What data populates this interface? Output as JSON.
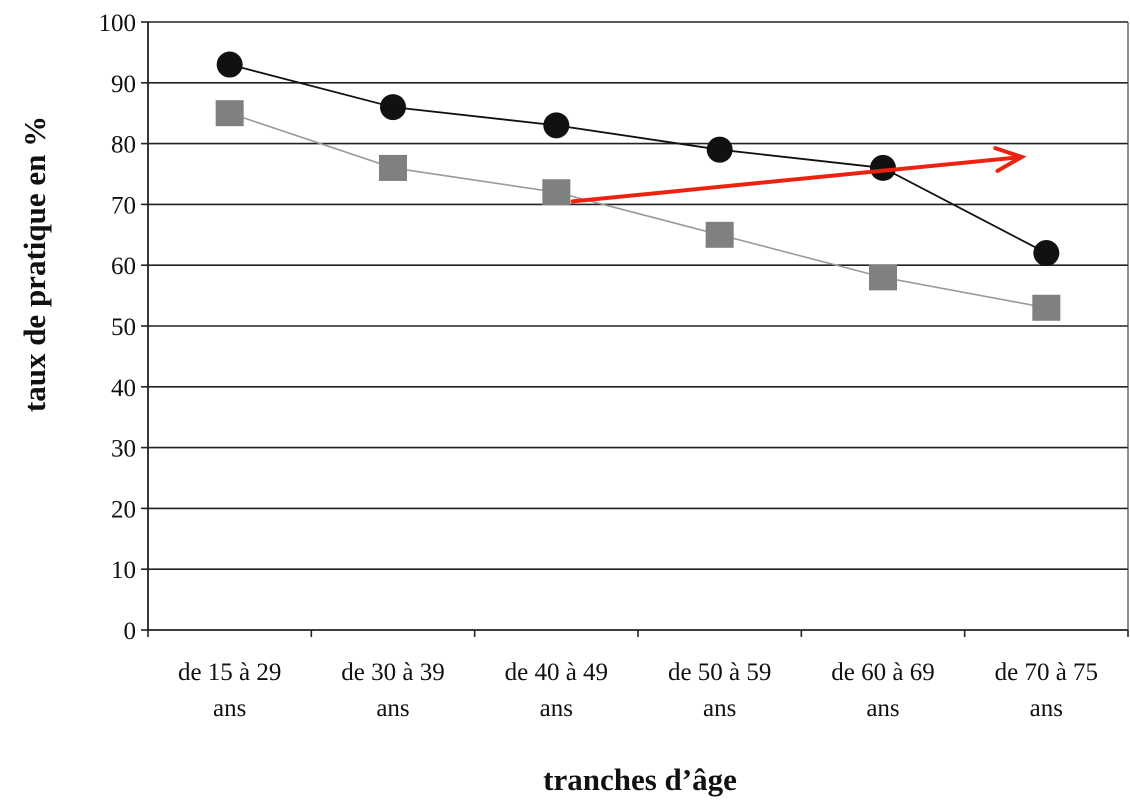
{
  "chart_data": {
    "type": "line",
    "title": "",
    "xlabel": "tranches d’âge",
    "ylabel": "taux de pratique en %",
    "categories": [
      [
        "de 15 à 29",
        "ans"
      ],
      [
        "de 30 à 39",
        "ans"
      ],
      [
        "de 40 à 49",
        "ans"
      ],
      [
        "de 50 à 59",
        "ans"
      ],
      [
        "de 60 à 69",
        "ans"
      ],
      [
        "de 70 à 75",
        "ans"
      ]
    ],
    "ylim": [
      0,
      100
    ],
    "yticks": [
      "0",
      "10",
      "20",
      "30",
      "40",
      "50",
      "60",
      "70",
      "80",
      "90",
      "100"
    ],
    "grid": true,
    "legend": "none",
    "series": [
      {
        "marker": "circle",
        "color": "#111111",
        "values": [
          93,
          86,
          83,
          79,
          76,
          62
        ]
      },
      {
        "marker": "square",
        "color": "#808080",
        "values": [
          85,
          76,
          72,
          65,
          58,
          53
        ]
      }
    ],
    "annotations": [
      {
        "type": "arrow",
        "color": "#ee2211",
        "from": {
          "x": 2.6,
          "y": 70.5
        },
        "to": {
          "x": 5.35,
          "y": 77.8
        }
      }
    ]
  }
}
